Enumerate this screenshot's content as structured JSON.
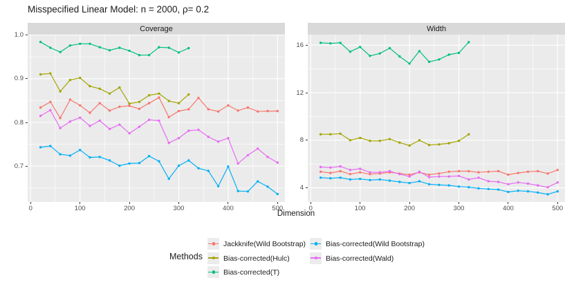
{
  "title": "Misspecified Linear Model: n = 2000, ρ= 0.2",
  "legend": {
    "title": "Methods",
    "columns": [
      [
        0,
        1,
        2
      ],
      [
        3,
        4
      ]
    ]
  },
  "colors": {
    "panel_bg": "#ebebeb",
    "strip_bg": "#d9d9d9",
    "grid": "#ffffff",
    "tick_text": "#4d4d4d",
    "text": "#1a1a1a"
  },
  "chart_data": {
    "type": "line",
    "title": "Misspecified Linear Model: n = 2000, ρ= 0.2",
    "x_label": "Dimension",
    "x_major_ticks": [
      0,
      100,
      200,
      300,
      400,
      500
    ],
    "x_minor_ticks": [
      50,
      150,
      250,
      350,
      450
    ],
    "xlim": [
      -6,
      515
    ],
    "legend_position": "bottom",
    "grid": true,
    "facets": [
      {
        "label": "Coverage",
        "key": "coverage",
        "ylim": [
          0.618,
          1.001
        ],
        "y_major_ticks": [
          1.0,
          0.9,
          0.8,
          0.7
        ],
        "y_tick_labels": [
          "1.0",
          "0.9",
          "0.8",
          "0.7"
        ],
        "y_minor_ticks": [
          0.95,
          0.85,
          0.75,
          0.65
        ]
      },
      {
        "label": "Width",
        "key": "width",
        "ylim": [
          2.81,
          16.89
        ],
        "y_major_ticks": [
          16,
          12,
          8,
          4
        ],
        "y_tick_labels": [
          "16",
          "12",
          "8",
          "4"
        ],
        "y_minor_ticks": [
          14,
          10,
          6
        ]
      }
    ],
    "series": [
      {
        "name": "Jackknife(Wild Bootstrap)",
        "color": "#F8766D",
        "x": [
          20,
          40,
          60,
          80,
          100,
          120,
          140,
          160,
          180,
          200,
          220,
          240,
          260,
          280,
          300,
          320,
          340,
          360,
          380,
          400,
          420,
          440,
          460,
          480,
          500
        ],
        "coverage": [
          0.834,
          0.847,
          0.81,
          0.852,
          0.839,
          0.822,
          0.844,
          0.827,
          0.836,
          0.838,
          0.831,
          0.844,
          0.857,
          0.812,
          0.826,
          0.83,
          0.856,
          0.83,
          0.825,
          0.839,
          0.827,
          0.834,
          0.825,
          0.826,
          0.826
        ],
        "width": [
          5.35,
          5.25,
          5.4,
          5.15,
          5.3,
          5.15,
          5.2,
          5.3,
          5.2,
          5.1,
          5.3,
          5.1,
          5.2,
          5.35,
          5.4,
          5.4,
          5.3,
          5.35,
          5.4,
          5.1,
          5.25,
          5.35,
          5.4,
          5.2,
          5.5
        ]
      },
      {
        "name": "Bias-corrected(Hulc)",
        "color": "#A3A500",
        "x": [
          20,
          40,
          60,
          80,
          100,
          120,
          140,
          160,
          180,
          200,
          220,
          240,
          260,
          280,
          300,
          320
        ],
        "coverage": [
          0.91,
          0.912,
          0.871,
          0.897,
          0.902,
          0.883,
          0.877,
          0.866,
          0.88,
          0.843,
          0.847,
          0.862,
          0.866,
          0.849,
          0.844,
          0.864
        ],
        "width": [
          8.5,
          8.5,
          8.55,
          8.0,
          8.2,
          7.95,
          7.95,
          8.1,
          7.8,
          7.55,
          8.0,
          7.6,
          7.65,
          7.75,
          7.95,
          8.5
        ]
      },
      {
        "name": "Bias-corrected(T)",
        "color": "#00BF7D",
        "x": [
          20,
          40,
          60,
          80,
          100,
          120,
          140,
          160,
          180,
          200,
          220,
          240,
          260,
          280,
          300,
          320
        ],
        "coverage": [
          0.984,
          0.971,
          0.961,
          0.976,
          0.98,
          0.98,
          0.972,
          0.965,
          0.971,
          0.964,
          0.954,
          0.954,
          0.972,
          0.971,
          0.96,
          0.97
        ],
        "width": [
          16.2,
          16.15,
          16.2,
          15.45,
          15.85,
          15.1,
          15.3,
          15.75,
          15.05,
          14.45,
          15.5,
          14.6,
          14.8,
          15.2,
          15.35,
          16.25
        ]
      },
      {
        "name": "Bias-corrected(Wild Bootstrap)",
        "color": "#00B0F6",
        "x": [
          20,
          40,
          60,
          80,
          100,
          120,
          140,
          160,
          180,
          200,
          220,
          240,
          260,
          280,
          300,
          320,
          340,
          360,
          380,
          400,
          420,
          440,
          460,
          480,
          500
        ],
        "coverage": [
          0.743,
          0.746,
          0.727,
          0.724,
          0.737,
          0.72,
          0.721,
          0.713,
          0.701,
          0.706,
          0.707,
          0.723,
          0.711,
          0.671,
          0.701,
          0.713,
          0.695,
          0.689,
          0.654,
          0.699,
          0.643,
          0.642,
          0.665,
          0.653,
          0.636
        ],
        "width": [
          4.85,
          4.8,
          4.85,
          4.7,
          4.75,
          4.65,
          4.7,
          4.6,
          4.5,
          4.4,
          4.55,
          4.3,
          4.25,
          4.2,
          4.1,
          4.05,
          3.95,
          3.9,
          3.85,
          3.65,
          3.75,
          3.7,
          3.6,
          3.45,
          3.7
        ]
      },
      {
        "name": "Bias-corrected(Wald)",
        "color": "#E76BF3",
        "x": [
          20,
          40,
          60,
          80,
          100,
          120,
          140,
          160,
          180,
          200,
          220,
          240,
          260,
          280,
          300,
          320,
          340,
          360,
          380,
          400,
          420,
          440,
          460,
          480,
          500
        ],
        "coverage": [
          0.815,
          0.828,
          0.787,
          0.802,
          0.811,
          0.792,
          0.804,
          0.785,
          0.795,
          0.775,
          0.79,
          0.806,
          0.804,
          0.753,
          0.764,
          0.781,
          0.783,
          0.767,
          0.756,
          0.764,
          0.706,
          0.725,
          0.74,
          0.721,
          0.708
        ],
        "width": [
          5.75,
          5.7,
          5.8,
          5.5,
          5.6,
          5.3,
          5.3,
          5.4,
          5.15,
          4.95,
          5.35,
          4.9,
          4.95,
          4.95,
          5.0,
          4.7,
          4.85,
          4.55,
          4.5,
          4.3,
          4.45,
          4.35,
          4.2,
          4.05,
          4.45
        ]
      }
    ]
  }
}
